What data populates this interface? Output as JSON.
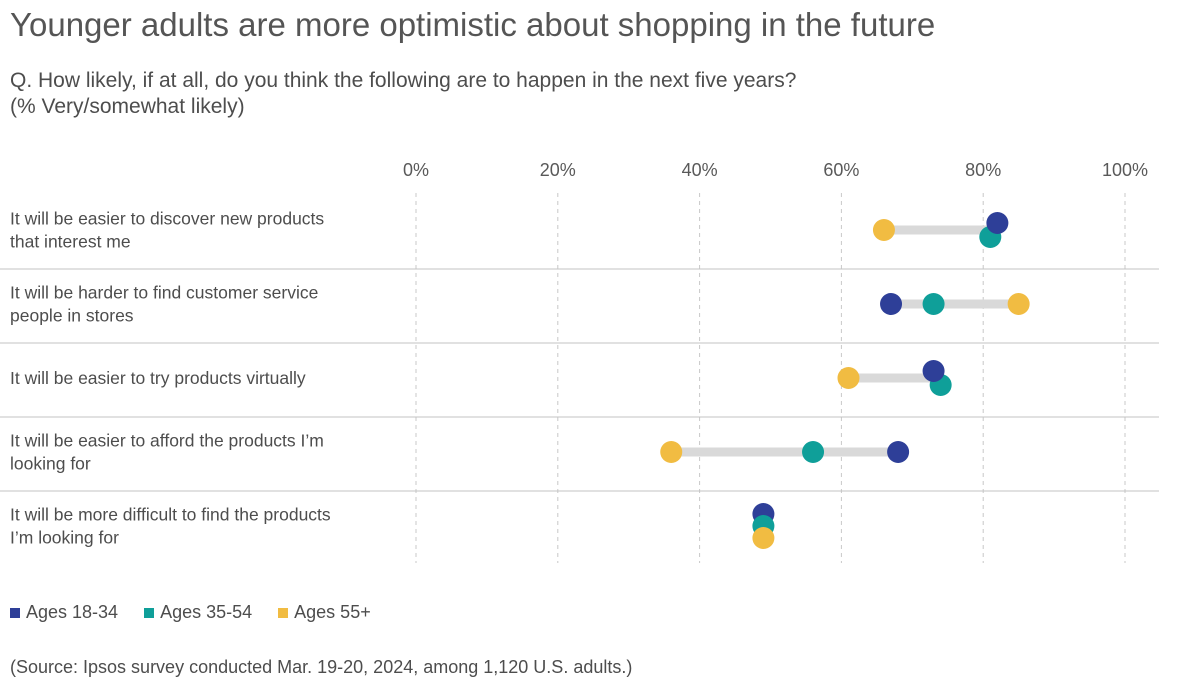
{
  "chart_data": {
    "type": "dot-plot",
    "title": "Younger adults are more optimistic about shopping in the future",
    "subtitle_lines": [
      "Q. How likely, if at all, do you think the following are to happen in the next five years?",
      "(% Very/somewhat likely)"
    ],
    "x_ticks": [
      "0%",
      "20%",
      "40%",
      "60%",
      "80%",
      "100%"
    ],
    "xlim": [
      0,
      100
    ],
    "grid": "vertical dashed",
    "legend_position": "bottom-left",
    "categories": [
      [
        "It will be easier to discover new products",
        "that interest me"
      ],
      [
        "It will be harder to find customer service",
        "people in stores"
      ],
      [
        "It will be easier to try products virtually"
      ],
      [
        "It will be easier to afford the products I’m",
        "looking for"
      ],
      [
        "It will be more difficult to find the products",
        "I’m looking for"
      ]
    ],
    "series": [
      {
        "name": "Ages 18-34",
        "color": "#2e3f98",
        "values": [
          82,
          67,
          73,
          68,
          49
        ]
      },
      {
        "name": "Ages 35-54",
        "color": "#0f9f99",
        "values": [
          81,
          73,
          74,
          56,
          49
        ]
      },
      {
        "name": "Ages 55+",
        "color": "#f1bc42",
        "values": [
          66,
          85,
          61,
          36,
          49
        ]
      }
    ],
    "source": "(Source: Ipsos survey conducted Mar. 19-20, 2024, among 1,120 U.S. adults.)"
  }
}
